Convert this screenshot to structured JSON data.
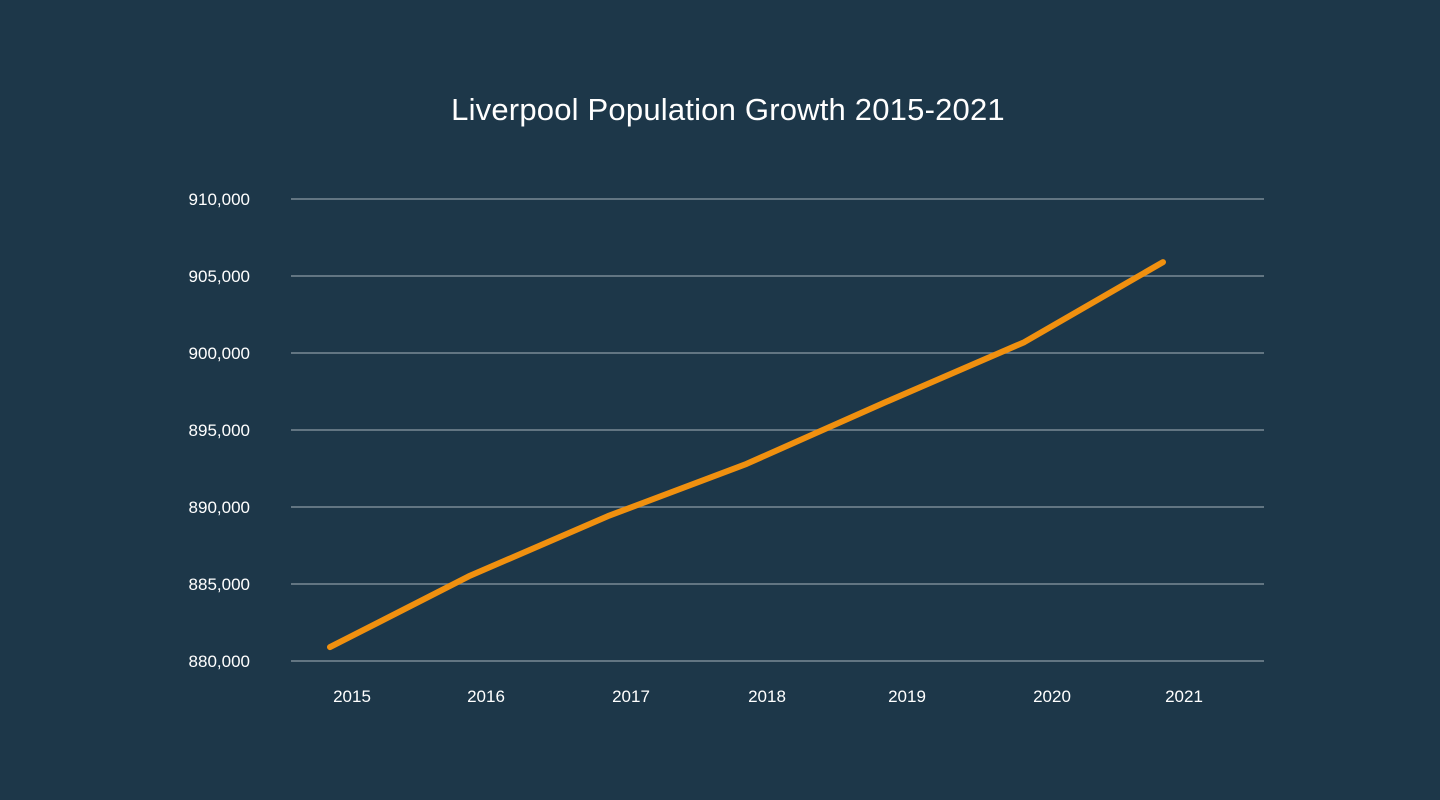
{
  "chart_data": {
    "type": "line",
    "title": "Liverpool Population Growth 2015-2021",
    "xlabel": "",
    "ylabel": "",
    "categories": [
      "2015",
      "2016",
      "2017",
      "2018",
      "2019",
      "2020",
      "2021"
    ],
    "series": [
      {
        "values": [
          880900,
          885500,
          889400,
          892800,
          896800,
          900700,
          905900
        ]
      }
    ],
    "yticks": [
      880000,
      885000,
      890000,
      895000,
      900000,
      905000,
      910000
    ],
    "ytick_labels": [
      "880,000",
      "885,000",
      "890,000",
      "895,000",
      "900,000",
      "905,000",
      "910,000"
    ],
    "ylim": [
      880000,
      910000
    ],
    "grid": "horizontal",
    "legend": "none"
  },
  "colors": {
    "background": "#1d3749",
    "line": "#f0900f",
    "grid": "#7a8a95",
    "text": "#ffffff"
  }
}
